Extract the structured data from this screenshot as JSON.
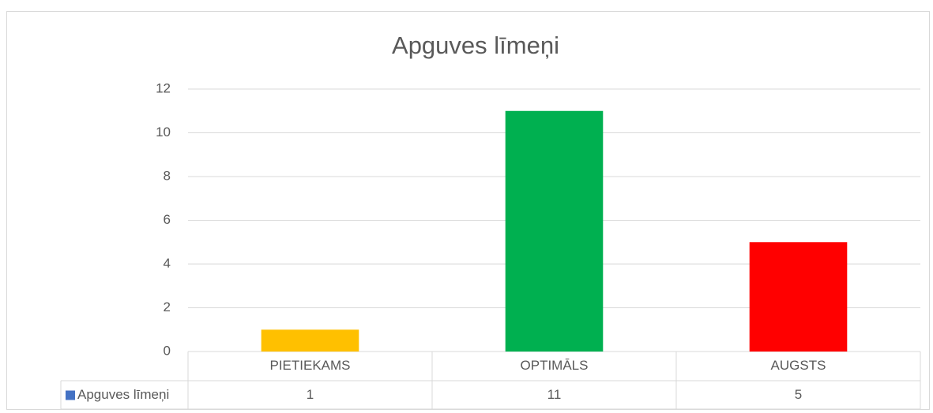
{
  "chart_data": {
    "type": "bar",
    "title": "Apguves līmeņi",
    "categories": [
      "PIETIEKAMS",
      "OPTIMĀLS",
      "AUGSTS"
    ],
    "series": [
      {
        "name": "Apguves līmeņi",
        "color": "#4472c4",
        "point_colors": [
          "#ffc000",
          "#00b050",
          "#ff0000"
        ],
        "values": [
          1,
          11,
          5
        ]
      }
    ],
    "ylim": [
      0,
      12
    ],
    "yticks": [
      0,
      2,
      4,
      6,
      8,
      10,
      12
    ],
    "grid": true,
    "data_table": true
  }
}
